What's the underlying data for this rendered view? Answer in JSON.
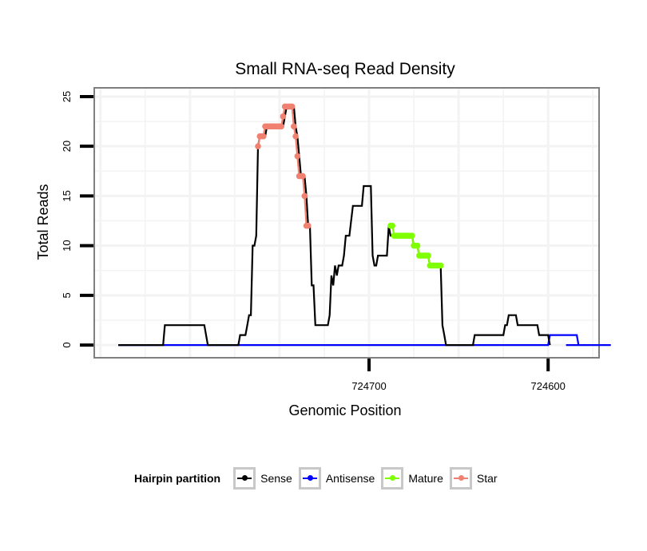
{
  "chart_data": {
    "type": "line",
    "title": "Small RNA-seq Read Density",
    "xlabel": "Genomic Position",
    "ylabel": "Total Reads",
    "x_reversed": true,
    "xlim": [
      724572,
      724853
    ],
    "ylim": [
      -1.2,
      25.8
    ],
    "x_ticks": [
      724700,
      724600
    ],
    "x_tick_labels": [
      "724700",
      "724600"
    ],
    "y_ticks": [
      0,
      5,
      10,
      15,
      20,
      25
    ],
    "y_tick_labels": [
      "0",
      "5",
      "10",
      "15",
      "20",
      "25"
    ],
    "grid": true,
    "legend_position": "bottom",
    "legend_title": "Hairpin partition",
    "series": [
      {
        "name": "Sense",
        "color": "#000000",
        "points": [
          [
            724840,
            0
          ],
          [
            724815,
            0
          ],
          [
            724814,
            2
          ],
          [
            724792,
            2
          ],
          [
            724790,
            0
          ],
          [
            724773,
            0
          ],
          [
            724772,
            1
          ],
          [
            724769,
            1
          ],
          [
            724768,
            2
          ],
          [
            724767,
            3
          ],
          [
            724766,
            3
          ],
          [
            724765,
            10
          ],
          [
            724764,
            10
          ],
          [
            724763,
            11
          ],
          [
            724762,
            20
          ],
          [
            724761,
            21
          ],
          [
            724758,
            21
          ],
          [
            724757,
            22
          ],
          [
            724748,
            22
          ],
          [
            724747,
            23
          ],
          [
            724746,
            24
          ],
          [
            724742,
            24
          ],
          [
            724741,
            22
          ],
          [
            724740,
            21
          ],
          [
            724739,
            19
          ],
          [
            724738,
            17
          ],
          [
            724736,
            17
          ],
          [
            724735,
            15
          ],
          [
            724734,
            12
          ],
          [
            724733,
            12
          ],
          [
            724732,
            6
          ],
          [
            724731,
            6
          ],
          [
            724730,
            2
          ],
          [
            724723,
            2
          ],
          [
            724722,
            3
          ],
          [
            724721,
            7
          ],
          [
            724720,
            6
          ],
          [
            724719,
            8
          ],
          [
            724718,
            7
          ],
          [
            724717,
            8
          ],
          [
            724715,
            8
          ],
          [
            724714,
            9
          ],
          [
            724713,
            11
          ],
          [
            724711,
            11
          ],
          [
            724709,
            14
          ],
          [
            724704,
            14
          ],
          [
            724703,
            16
          ],
          [
            724699,
            16
          ],
          [
            724698,
            9
          ],
          [
            724697,
            8
          ],
          [
            724696,
            8
          ],
          [
            724695,
            9
          ],
          [
            724690,
            9
          ],
          [
            724689,
            12
          ],
          [
            724688,
            11
          ],
          [
            724676,
            11
          ],
          [
            724675,
            10
          ],
          [
            724673,
            10
          ],
          [
            724672,
            9
          ],
          [
            724667,
            9
          ],
          [
            724666,
            8
          ],
          [
            724660,
            8
          ],
          [
            724659,
            2
          ],
          [
            724658,
            1
          ],
          [
            724657,
            0
          ],
          [
            724642,
            0
          ],
          [
            724641,
            1
          ],
          [
            724625,
            1
          ],
          [
            724624,
            2
          ],
          [
            724623,
            2
          ],
          [
            724622,
            3
          ],
          [
            724618,
            3
          ],
          [
            724617,
            2
          ],
          [
            724606,
            2
          ],
          [
            724605,
            1
          ],
          [
            724600,
            1
          ],
          [
            724599,
            0
          ]
        ]
      },
      {
        "name": "Antisense",
        "color": "#0000ff",
        "points": [
          [
            724840,
            0
          ],
          [
            724600,
            0
          ],
          [
            724599,
            1
          ],
          [
            724584,
            1
          ],
          [
            724583,
            0
          ],
          [
            724590,
            0
          ],
          [
            724589,
            0
          ],
          [
            724565,
            0
          ]
        ]
      },
      {
        "name": "Mature",
        "color": "#7fff00",
        "points": [
          [
            724688,
            12
          ],
          [
            724687,
            12
          ],
          [
            724686,
            11
          ],
          [
            724685,
            11
          ],
          [
            724684,
            11
          ],
          [
            724683,
            11
          ],
          [
            724682,
            11
          ],
          [
            724681,
            11
          ],
          [
            724680,
            11
          ],
          [
            724679,
            11
          ],
          [
            724678,
            11
          ],
          [
            724677,
            11
          ],
          [
            724676,
            11
          ],
          [
            724675,
            10
          ],
          [
            724674,
            10
          ],
          [
            724673,
            10
          ],
          [
            724672,
            9
          ],
          [
            724671,
            9
          ],
          [
            724670,
            9
          ],
          [
            724669,
            9
          ],
          [
            724668,
            9
          ],
          [
            724667,
            9
          ],
          [
            724666,
            8
          ],
          [
            724665,
            8
          ],
          [
            724664,
            8
          ],
          [
            724663,
            8
          ],
          [
            724662,
            8
          ],
          [
            724661,
            8
          ],
          [
            724660,
            8
          ]
        ]
      },
      {
        "name": "Star",
        "color": "#f08070",
        "points": [
          [
            724762,
            20
          ],
          [
            724761,
            21
          ],
          [
            724760,
            21
          ],
          [
            724759,
            21
          ],
          [
            724758,
            22
          ],
          [
            724757,
            22
          ],
          [
            724756,
            22
          ],
          [
            724755,
            22
          ],
          [
            724754,
            22
          ],
          [
            724753,
            22
          ],
          [
            724752,
            22
          ],
          [
            724751,
            22
          ],
          [
            724750,
            22
          ],
          [
            724749,
            22
          ],
          [
            724748,
            23
          ],
          [
            724747,
            24
          ],
          [
            724746,
            24
          ],
          [
            724745,
            24
          ],
          [
            724744,
            24
          ],
          [
            724743,
            24
          ],
          [
            724742,
            22
          ],
          [
            724741,
            21
          ],
          [
            724740,
            19
          ],
          [
            724739,
            17
          ],
          [
            724738,
            17
          ],
          [
            724737,
            17
          ],
          [
            724736,
            15
          ],
          [
            724735,
            12
          ],
          [
            724734,
            12
          ]
        ]
      }
    ]
  }
}
